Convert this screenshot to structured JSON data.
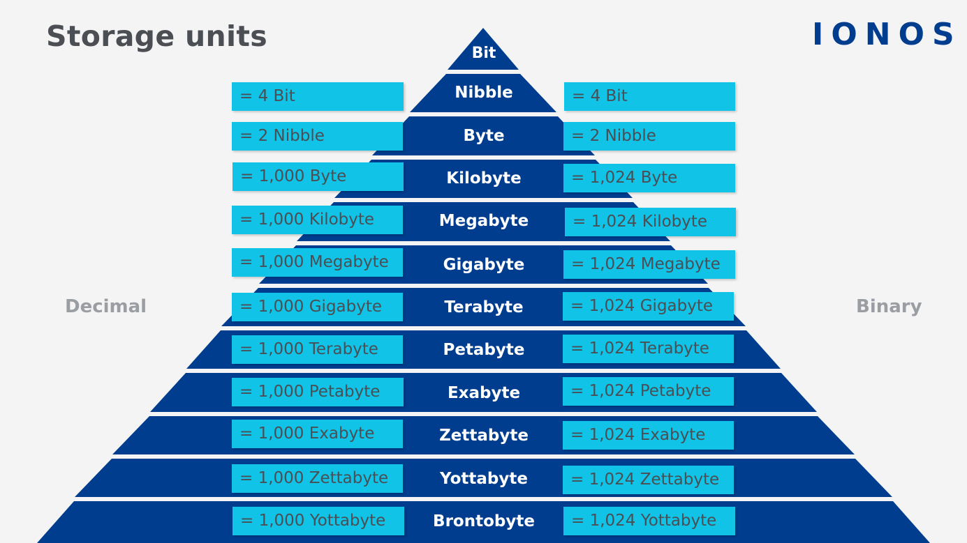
{
  "title": "Storage units",
  "logo": "IONOS",
  "labels": {
    "decimal": "Decimal",
    "binary": "Binary"
  },
  "colors": {
    "tier": "#003d8f",
    "box": "#11c3e6",
    "title": "#4b4f54",
    "side_label": "#9a9ea3"
  },
  "tiers": [
    {
      "name": "Bit",
      "decimal": "",
      "binary": ""
    },
    {
      "name": "Nibble",
      "decimal": "= 4 Bit",
      "binary": "= 4 Bit"
    },
    {
      "name": "Byte",
      "decimal": "= 2 Nibble",
      "binary": "= 2 Nibble"
    },
    {
      "name": "Kilobyte",
      "decimal": "= 1,000 Byte",
      "binary": "= 1,024 Byte"
    },
    {
      "name": "Megabyte",
      "decimal": "= 1,000 Kilobyte",
      "binary": "= 1,024 Kilobyte"
    },
    {
      "name": "Gigabyte",
      "decimal": "= 1,000 Megabyte",
      "binary": "= 1,024 Megabyte"
    },
    {
      "name": "Terabyte",
      "decimal": "= 1,000 Gigabyte",
      "binary": "= 1,024 Gigabyte"
    },
    {
      "name": "Petabyte",
      "decimal": "= 1,000 Terabyte",
      "binary": "= 1,024 Terabyte"
    },
    {
      "name": "Exabyte",
      "decimal": "= 1,000 Petabyte",
      "binary": "= 1,024 Petabyte"
    },
    {
      "name": "Zettabyte",
      "decimal": "= 1,000 Exabyte",
      "binary": "= 1,024 Exabyte"
    },
    {
      "name": "Yottabyte",
      "decimal": "= 1,000 Zettabyte",
      "binary": "= 1,024 Zettabyte"
    },
    {
      "name": "Brontobyte",
      "decimal": "= 1,000 Yottabyte",
      "binary": "= 1,024 Yottabyte"
    }
  ]
}
